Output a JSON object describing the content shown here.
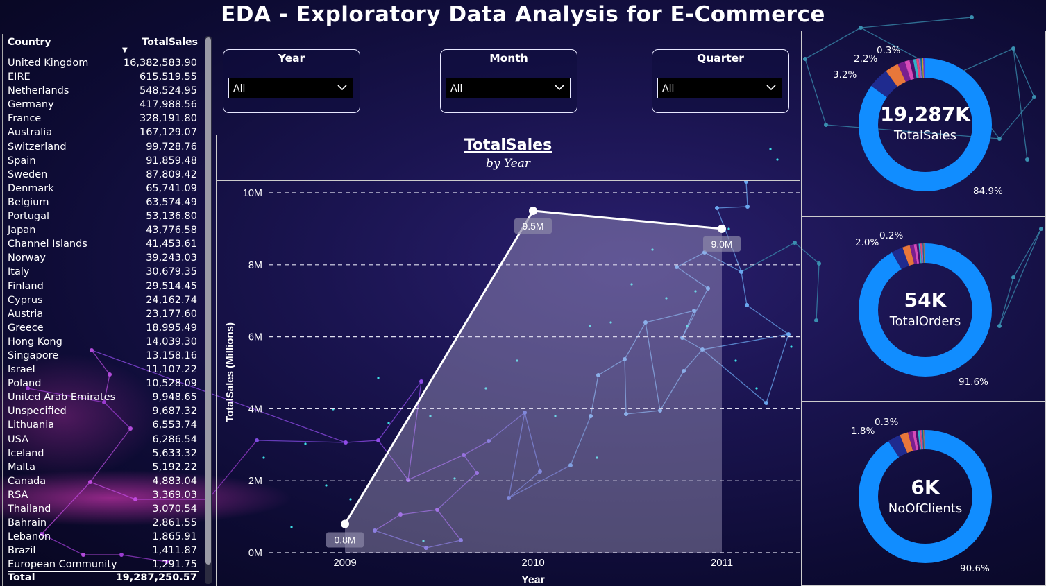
{
  "header": {
    "title": "EDA - Exploratory Data Analysis for E-Commerce"
  },
  "table": {
    "col_country": "Country",
    "col_sales": "TotalSales",
    "rows": [
      {
        "country": "United Kingdom",
        "sales": "16,382,583.90"
      },
      {
        "country": "EIRE",
        "sales": "615,519.55"
      },
      {
        "country": "Netherlands",
        "sales": "548,524.95"
      },
      {
        "country": "Germany",
        "sales": "417,988.56"
      },
      {
        "country": "France",
        "sales": "328,191.80"
      },
      {
        "country": "Australia",
        "sales": "167,129.07"
      },
      {
        "country": "Switzerland",
        "sales": "99,728.76"
      },
      {
        "country": "Spain",
        "sales": "91,859.48"
      },
      {
        "country": "Sweden",
        "sales": "87,809.42"
      },
      {
        "country": "Denmark",
        "sales": "65,741.09"
      },
      {
        "country": "Belgium",
        "sales": "63,574.49"
      },
      {
        "country": "Portugal",
        "sales": "53,136.80"
      },
      {
        "country": "Japan",
        "sales": "43,776.58"
      },
      {
        "country": "Channel Islands",
        "sales": "41,453.61"
      },
      {
        "country": "Norway",
        "sales": "39,243.03"
      },
      {
        "country": "Italy",
        "sales": "30,679.35"
      },
      {
        "country": "Finland",
        "sales": "29,514.45"
      },
      {
        "country": "Cyprus",
        "sales": "24,162.74"
      },
      {
        "country": "Austria",
        "sales": "23,177.60"
      },
      {
        "country": "Greece",
        "sales": "18,995.49"
      },
      {
        "country": "Hong Kong",
        "sales": "14,039.30"
      },
      {
        "country": "Singapore",
        "sales": "13,158.16"
      },
      {
        "country": "Israel",
        "sales": "11,107.22"
      },
      {
        "country": "Poland",
        "sales": "10,528.09"
      },
      {
        "country": "United Arab Emirates",
        "sales": "9,948.65"
      },
      {
        "country": "Unspecified",
        "sales": "9,687.32"
      },
      {
        "country": "Lithuania",
        "sales": "6,553.74"
      },
      {
        "country": "USA",
        "sales": "6,286.54"
      },
      {
        "country": "Iceland",
        "sales": "5,633.32"
      },
      {
        "country": "Malta",
        "sales": "5,192.22"
      },
      {
        "country": "Canada",
        "sales": "4,883.04"
      },
      {
        "country": "RSA",
        "sales": "3,369.03"
      },
      {
        "country": "Thailand",
        "sales": "3,070.54"
      },
      {
        "country": "Bahrain",
        "sales": "2,861.55"
      },
      {
        "country": "Lebanon",
        "sales": "1,865.91"
      },
      {
        "country": "Brazil",
        "sales": "1,411.87"
      },
      {
        "country": "European Community",
        "sales": "1,291.75"
      }
    ],
    "total_label": "Total",
    "total_value": "19,287,250.57"
  },
  "slicers": [
    {
      "label": "Year",
      "value": "All"
    },
    {
      "label": "Month",
      "value": "All"
    },
    {
      "label": "Quarter",
      "value": "All"
    }
  ],
  "chart_data": {
    "type": "area",
    "title": "TotalSales",
    "subtitle": "by Year",
    "xlabel": "Year",
    "ylabel": "TotalSales (Millions)",
    "categories": [
      "2009",
      "2010",
      "2011"
    ],
    "values": [
      0.8,
      9.5,
      9.0
    ],
    "data_labels": [
      "0.8M",
      "9.5M",
      "9.0M"
    ],
    "ylim": [
      0,
      10
    ],
    "yticks": [
      0,
      2,
      4,
      6,
      8,
      10
    ],
    "ytick_labels": [
      "0M",
      "2M",
      "4M",
      "6M",
      "8M",
      "10M"
    ],
    "grid": true
  },
  "kpis": [
    {
      "value": "19,287K",
      "label": "TotalSales",
      "main_pct": "84.9%",
      "small_pcts": [
        "3.2%",
        "2.2%",
        "0.3%"
      ],
      "main_fraction": 0.849,
      "color": "#118dff"
    },
    {
      "value": "54K",
      "label": "TotalOrders",
      "main_pct": "91.6%",
      "small_pcts": [
        "2.0%",
        "0.2%"
      ],
      "main_fraction": 0.916,
      "color": "#118dff"
    },
    {
      "value": "6K",
      "label": "NoOfClients",
      "main_pct": "90.6%",
      "small_pcts": [
        "1.8%",
        "0.3%"
      ],
      "main_fraction": 0.906,
      "color": "#118dff"
    }
  ]
}
